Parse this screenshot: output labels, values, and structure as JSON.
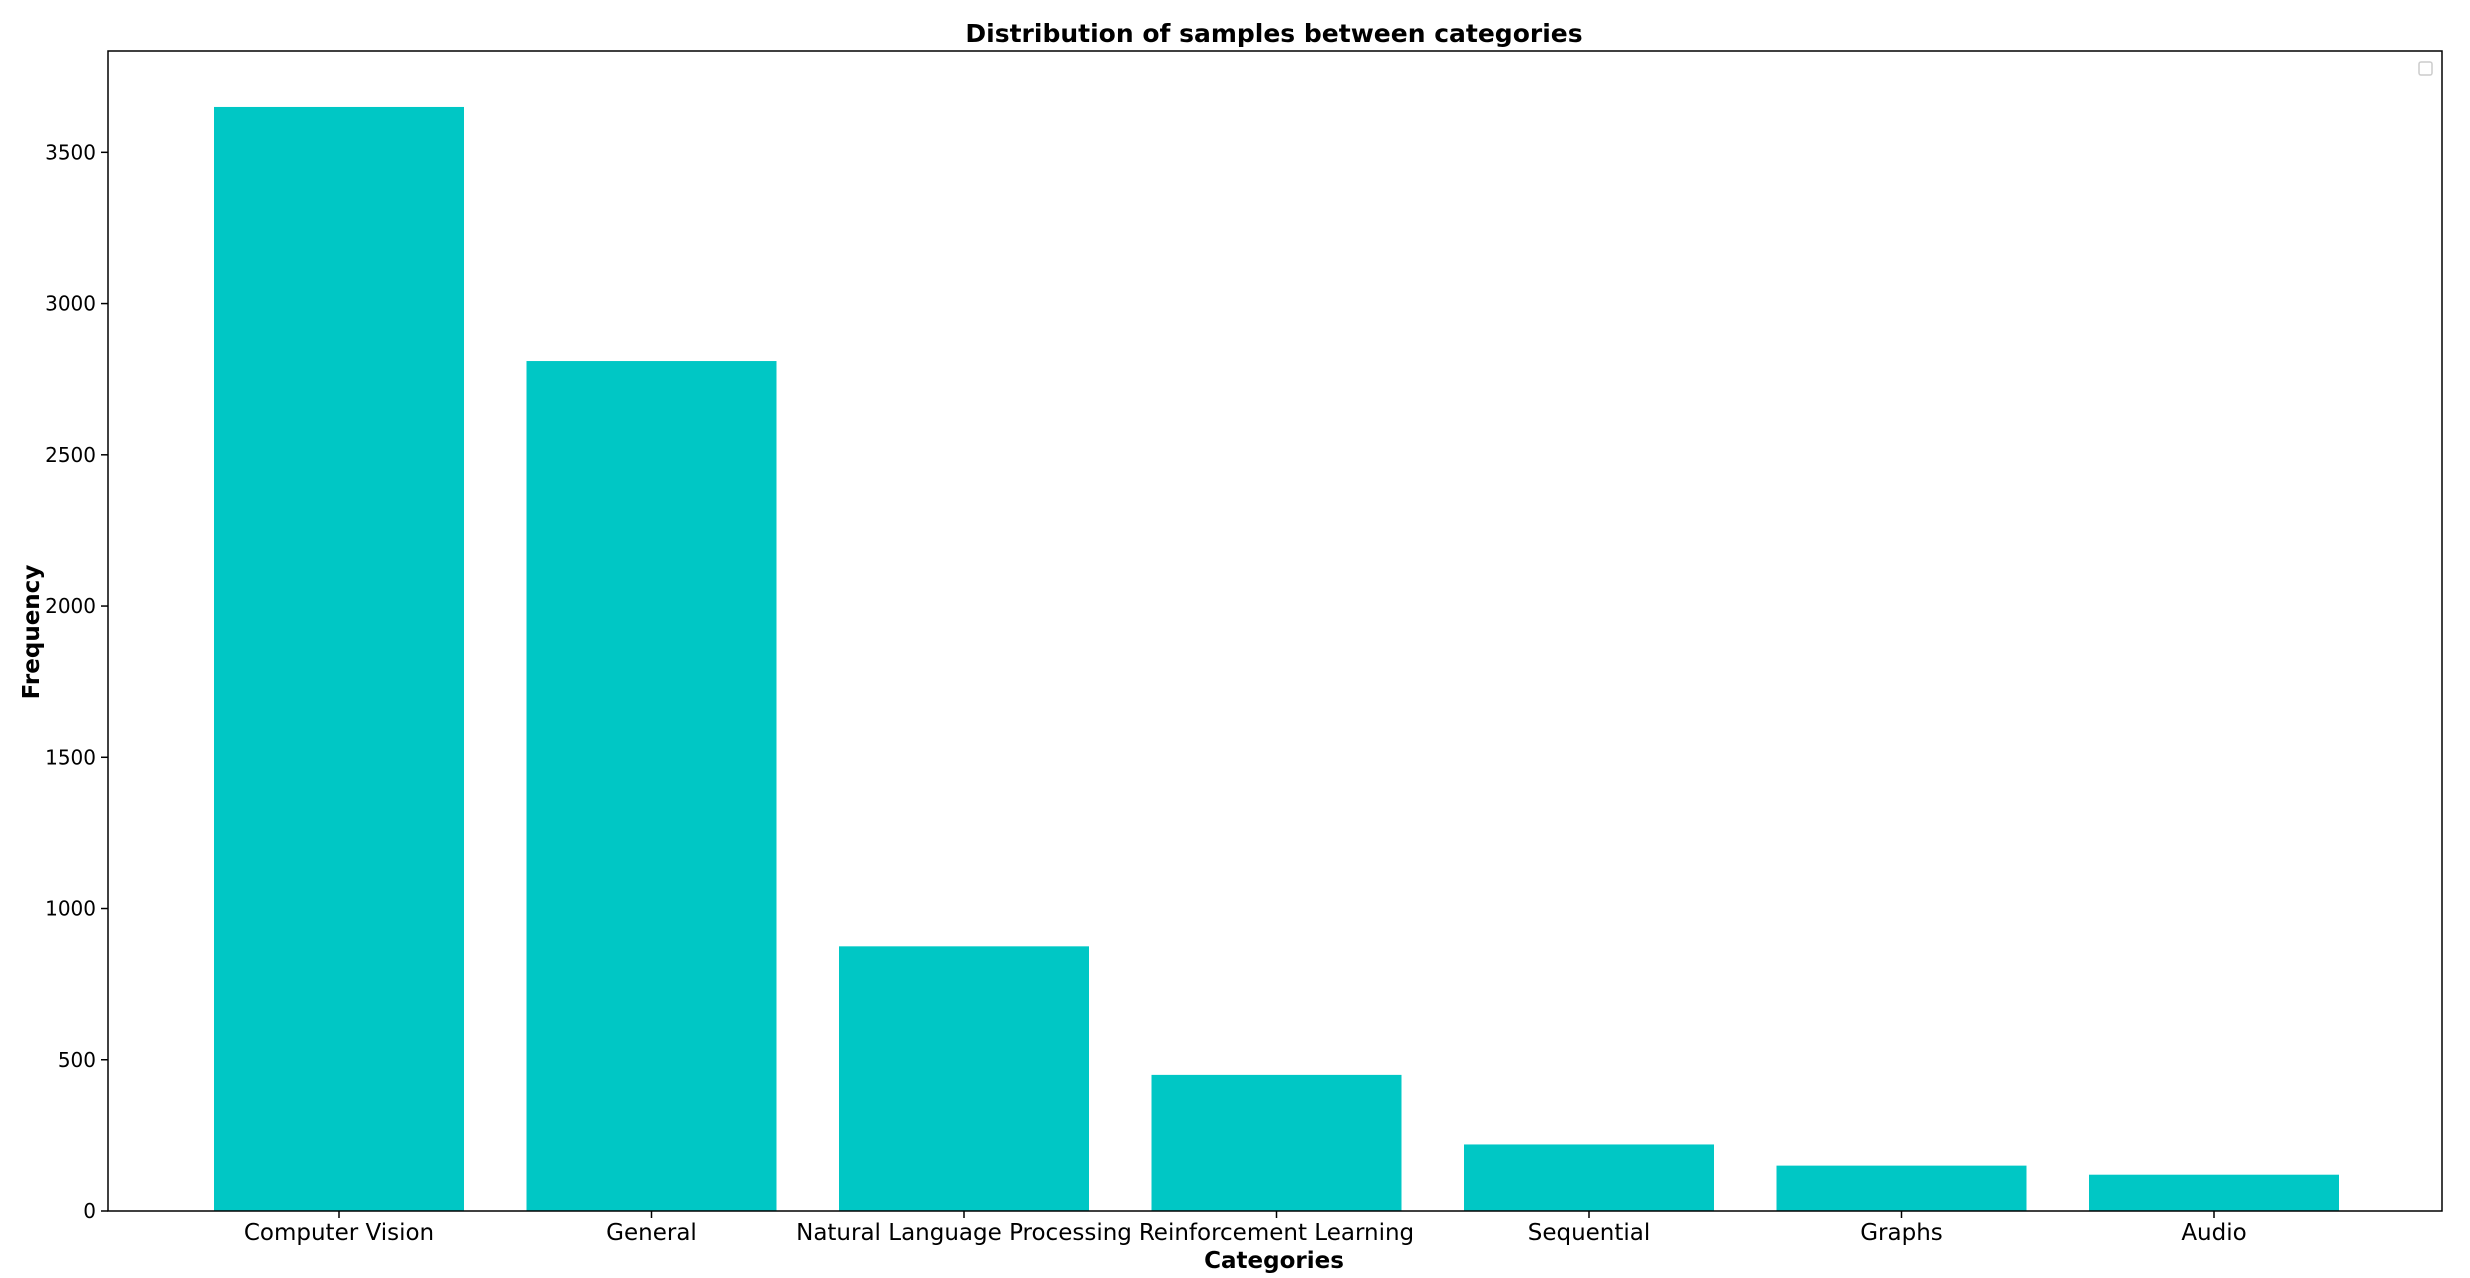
{
  "chart_data": {
    "type": "bar",
    "title": "Distribution of samples between categories",
    "xlabel": "Categories",
    "ylabel": "Frequency",
    "categories": [
      "Computer Vision",
      "General",
      "Natural Language Processing",
      "Reinforcement Learning",
      "Sequential",
      "Graphs",
      "Audio"
    ],
    "values": [
      3650,
      2810,
      875,
      450,
      220,
      150,
      120
    ],
    "ylim": [
      0,
      3835
    ],
    "yticks": [
      0,
      500,
      1000,
      1500,
      2000,
      2500,
      3000,
      3500
    ],
    "bar_color": "#00c7c5",
    "grid": false,
    "legend": "top-right (empty)"
  }
}
